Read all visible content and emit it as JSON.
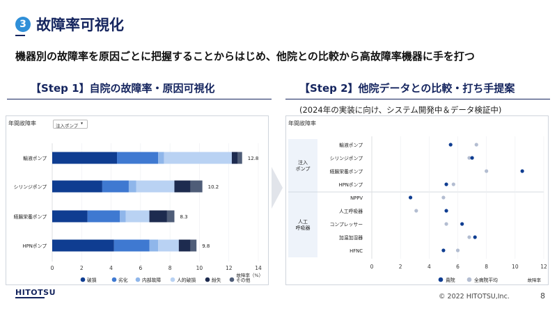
{
  "header": {
    "badge": "3",
    "title": "故障率可視化",
    "subtitle": "機器別の故障率を原因ごとに把握することからはじめ、他院との比較から高故障率機器に手を打つ"
  },
  "step1": {
    "heading": "【Step 1】自院の故障率・原因可視化",
    "panel_title": "年間故障率",
    "dropdown_value": "注入ポンプ",
    "dropdown_caret": "▾",
    "x_axis_label": "故障率（%）"
  },
  "step2": {
    "heading": "【Step 2】他院データとの比較・打ち手提案",
    "note": "(2024年の実装に向け、システム開発中＆データ検証中)",
    "panel_title": "年間故障率",
    "group1_label": "注入\nポンプ",
    "group2_label": "人工\n呼吸器",
    "x_axis_label": "故障率"
  },
  "footer": {
    "logo": "HITOTSU",
    "copyright": "© 2022 HITOTSU,Inc.",
    "page": "8"
  },
  "colors": {
    "navy": "#14245e",
    "badge": "#2f8fd8"
  },
  "chart_data": [
    {
      "type": "bar",
      "orientation": "horizontal-stacked",
      "title": "年間故障率",
      "categories": [
        "輸液ポンプ",
        "シリンジポンプ",
        "経腸栄養ポンプ",
        "HPNポンプ"
      ],
      "totals": [
        "12.8",
        "10.2",
        "8.3",
        "9.8"
      ],
      "series": [
        {
          "name": "破損",
          "color": "#0f3d91",
          "values": [
            4.4,
            3.4,
            2.4,
            4.2
          ]
        },
        {
          "name": "劣化",
          "color": "#3f79d1",
          "values": [
            2.8,
            1.8,
            2.2,
            2.4
          ]
        },
        {
          "name": "内部故障",
          "color": "#8fb6ea",
          "values": [
            0.4,
            0.5,
            0.4,
            0.6
          ]
        },
        {
          "name": "人的破損",
          "color": "#b9d2f3",
          "values": [
            4.6,
            2.6,
            1.6,
            1.4
          ]
        },
        {
          "name": "紛失",
          "color": "#1d2b4f",
          "values": [
            0.4,
            1.1,
            1.2,
            0.8
          ]
        },
        {
          "name": "その他",
          "color": "#4f5d78",
          "values": [
            0.3,
            0.8,
            0.5,
            0.4
          ]
        }
      ],
      "xlim": [
        0,
        14
      ],
      "xticks": [
        0,
        2,
        4,
        6,
        8,
        10,
        12,
        14
      ],
      "xlabel": "故障率（%）",
      "legend": "bottom"
    },
    {
      "type": "scatter",
      "title": "年間故障率",
      "categories": [
        "輸液ポンプ",
        "シリンジポンプ",
        "経腸栄養ポンプ",
        "HPNポンプ",
        "NPPV",
        "人工呼吸器",
        "コンプレッサー",
        "加温加湿器",
        "HFNC"
      ],
      "series": [
        {
          "name": "貴院",
          "color": "#0f3d91",
          "values": [
            5.5,
            7.0,
            10.5,
            5.2,
            2.7,
            5.2,
            6.3,
            7.2,
            5.0
          ]
        },
        {
          "name": "全病院平均",
          "color": "#b3bdd1",
          "values": [
            7.3,
            6.8,
            8.0,
            5.7,
            5.0,
            3.1,
            5.2,
            6.8,
            6.0
          ]
        }
      ],
      "xlim": [
        0,
        12
      ],
      "xticks": [
        0,
        2,
        4,
        6,
        8,
        10,
        12
      ],
      "xlabel": "故障率",
      "legend": "bottom"
    }
  ]
}
